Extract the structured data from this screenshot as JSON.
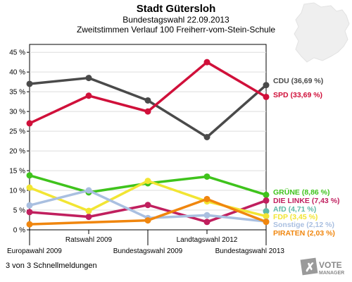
{
  "header": {
    "title": "Stadt Gütersloh",
    "subtitle1": "Bundestagswahl 22.09.2013",
    "subtitle2": "Zweitstimmen Verlauf 100 Freiherr-vom-Stein-Schule"
  },
  "footer": {
    "status": "3 von 3 Schnellmeldungen",
    "logo_line1": "VOTE",
    "logo_line2": "MANAGER"
  },
  "chart_data": {
    "type": "line",
    "categories": [
      "Europawahl 2009",
      "Ratswahl 2009",
      "Bundestagswahl 2009",
      "Landtagswahl 2012",
      "Bundestagswahl 2013"
    ],
    "ylim": [
      0,
      47
    ],
    "yticks": [
      0,
      5,
      10,
      15,
      20,
      25,
      30,
      35,
      40,
      45
    ],
    "ytick_labels": [
      "0 %",
      "5 %",
      "10 %",
      "15 %",
      "20 %",
      "25 %",
      "30 %",
      "35 %",
      "40 %",
      "45 %"
    ],
    "grid": true,
    "legend": "right",
    "series": [
      {
        "name": "CDU",
        "label": "CDU (36,69 %)",
        "color": "#4a4a4a",
        "values": [
          37.0,
          38.5,
          32.8,
          23.5,
          36.69
        ]
      },
      {
        "name": "SPD",
        "label": "SPD (33,69 %)",
        "color": "#d0103a",
        "values": [
          27.0,
          34.0,
          30.0,
          42.5,
          33.69
        ]
      },
      {
        "name": "GRÜNE",
        "label": "GRÜNE (8,86 %)",
        "color": "#3fc31c",
        "values": [
          13.8,
          9.5,
          11.8,
          13.5,
          8.86
        ]
      },
      {
        "name": "DIE LINKE",
        "label": "DIE LINKE (7,43 %)",
        "color": "#c01f5e",
        "values": [
          4.5,
          3.3,
          6.3,
          2.0,
          7.43
        ]
      },
      {
        "name": "AfD",
        "label": "AfD (4,71 %)",
        "color": "#5fb8a8",
        "values": [
          null,
          null,
          null,
          null,
          4.71
        ]
      },
      {
        "name": "FDP",
        "label": "FDP (3,45 %)",
        "color": "#f2e533",
        "values": [
          10.7,
          4.8,
          12.4,
          7.2,
          3.45
        ]
      },
      {
        "name": "Sonstige",
        "label": "Sonstige (2,12 %)",
        "color": "#a9bfe0",
        "values": [
          6.2,
          10.0,
          3.0,
          3.7,
          2.12
        ]
      },
      {
        "name": "PIRATEN",
        "label": "PIRATEN (2,03 %)",
        "color": "#f0860e",
        "values": [
          1.4,
          null,
          2.4,
          7.8,
          2.03
        ]
      }
    ]
  }
}
